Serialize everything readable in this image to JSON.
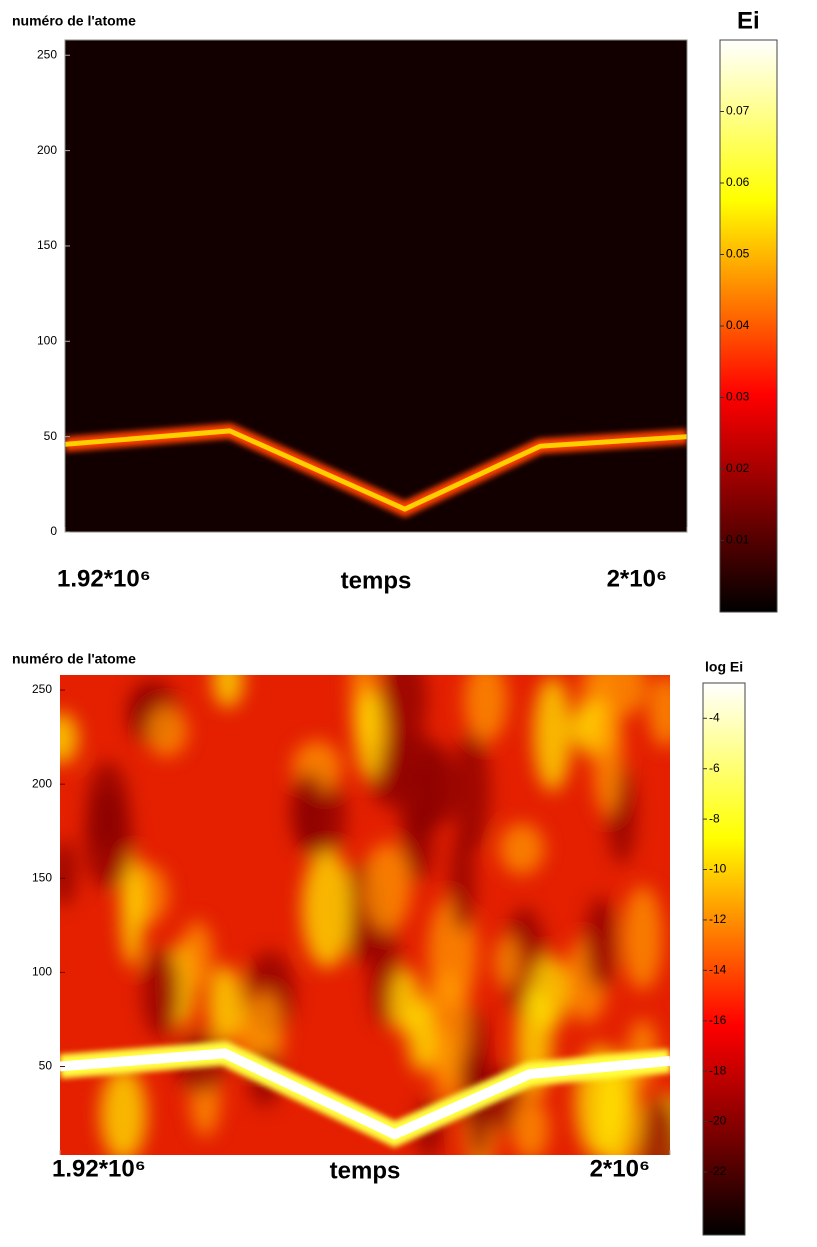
{
  "chart_data": [
    {
      "type": "heatmap",
      "ylabel": "numéro de l'atome",
      "xlabel": "temps",
      "xlim": [
        1920000,
        2000000
      ],
      "xticks": [
        {
          "value": 1920000,
          "label": "1.92*10⁶"
        },
        {
          "value": 2000000,
          "label": "2*10⁶"
        }
      ],
      "ylim": [
        0,
        258
      ],
      "yticks": [
        0,
        50,
        100,
        150,
        200,
        250
      ],
      "colormap": "hot",
      "background": "#120000",
      "x": [
        1920000,
        1941200,
        1963700,
        1981100,
        2000000
      ],
      "values": [
        46,
        53,
        12,
        45,
        50
      ],
      "colorbar": {
        "label": "Ei",
        "lim": [
          0,
          0.08
        ],
        "ticks": [
          0.01,
          0.02,
          0.03,
          0.04,
          0.05,
          0.06,
          0.07
        ]
      }
    },
    {
      "type": "heatmap",
      "ylabel": "numéro de l'atome",
      "xlabel": "temps",
      "xlim": [
        1920000,
        2000000
      ],
      "xticks": [
        {
          "value": 1920000,
          "label": "1.92*10⁶"
        },
        {
          "value": 2000000,
          "label": "2*10⁶"
        }
      ],
      "ylim": [
        3,
        258
      ],
      "yticks": [
        50,
        100,
        150,
        200,
        250
      ],
      "colormap": "hot",
      "background": "#e42000",
      "x": [
        1920000,
        1941600,
        1963900,
        1981600,
        2000000
      ],
      "values": [
        50,
        57,
        14,
        46,
        53
      ],
      "colorbar": {
        "label": "log Ei",
        "lim": [
          -24.5,
          -2.6
        ],
        "ticks": [
          -4,
          -6,
          -8,
          -10,
          -12,
          -14,
          -16,
          -18,
          -20,
          -22
        ]
      }
    }
  ]
}
